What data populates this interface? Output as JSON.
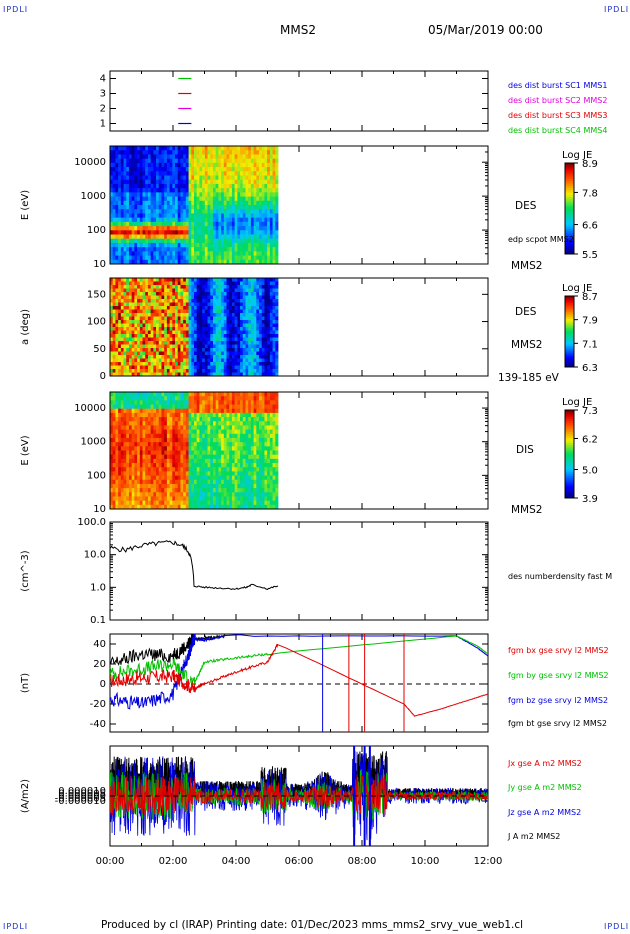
{
  "corner_labels": {
    "tl": "IPDLI",
    "tr": "IPDLI",
    "bl": "IPDLI",
    "br": "IPDLI"
  },
  "header": {
    "spacecraft": "MMS2",
    "date": "05/Mar/2019 00:00"
  },
  "footer": {
    "text": "Produced by cl (IRAP)    Printing date: 01/Dec/2023    mms_mms2_srvy_vue_web1.cl"
  },
  "colors": {
    "red": "#e00000",
    "green": "#00c000",
    "blue": "#0000e0",
    "magenta": "#e000e0",
    "black": "#000000"
  },
  "chart_data": [
    {
      "type": "line",
      "panel": "availability",
      "yticks": [
        "1",
        "2",
        "3",
        "4"
      ],
      "ylim": [
        0.5,
        4.5
      ],
      "legend": [
        {
          "text": "des dist burst SC1 MMS1",
          "color": "#0000e0"
        },
        {
          "text": "des dist burst SC2 MMS2",
          "color": "#e000e0"
        },
        {
          "text": "des dist burst SC3 MMS3",
          "color": "#e00000"
        },
        {
          "text": "des dist burst SC4 MMS4",
          "color": "#00c000"
        }
      ],
      "series": [
        {
          "color": "#00c000",
          "y": 4,
          "x": [
            "02:10",
            "02:35"
          ]
        },
        {
          "color": "#e00000",
          "y": 3,
          "x": [
            "02:10",
            "02:35"
          ]
        },
        {
          "color": "#e000e0",
          "y": 2,
          "x": [
            "02:10",
            "02:35"
          ]
        },
        {
          "color": "#0000e0",
          "y": 1,
          "x": [
            "02:10",
            "02:35"
          ]
        }
      ]
    },
    {
      "type": "heatmap",
      "panel": "des-energy",
      "ylabel": "E (eV)",
      "yscale": "log",
      "ylim": [
        10,
        30000
      ],
      "yticks": [
        "10",
        "100",
        "1000",
        "10000"
      ],
      "right_labels": [
        "DES",
        "edp scpot MMS2",
        "MMS2"
      ],
      "colorbar": {
        "title": "Log JE",
        "ticks": [
          "8.9",
          "7.8",
          "6.6",
          "5.5"
        ],
        "range": [
          5.5,
          8.9
        ]
      },
      "data_end": "05:20"
    },
    {
      "type": "heatmap",
      "panel": "des-pitch",
      "ylabel": "a (deg)",
      "ylim": [
        0,
        180
      ],
      "yticks": [
        "0",
        "50",
        "100",
        "150"
      ],
      "right_labels": [
        "DES",
        "MMS2",
        "139-185 eV"
      ],
      "colorbar": {
        "title": "Log JE",
        "ticks": [
          "8.7",
          "7.9",
          "7.1",
          "6.3"
        ],
        "range": [
          6.3,
          8.7
        ]
      },
      "data_end": "05:20"
    },
    {
      "type": "heatmap",
      "panel": "dis-energy",
      "ylabel": "E (eV)",
      "yscale": "log",
      "ylim": [
        10,
        30000
      ],
      "yticks": [
        "10",
        "100",
        "1000",
        "10000"
      ],
      "right_labels": [
        "DIS",
        "MMS2"
      ],
      "colorbar": {
        "title": "Log JE",
        "ticks": [
          "7.3",
          "6.2",
          "5.0",
          "3.9"
        ],
        "range": [
          3.9,
          7.3
        ]
      },
      "data_end": "05:20"
    },
    {
      "type": "line",
      "panel": "density",
      "ylabel": "(cm^-3)",
      "yscale": "log",
      "ylim": [
        0.1,
        100
      ],
      "yticks": [
        "0.1",
        "1.0",
        "10.0",
        "100.0"
      ],
      "right_labels": [
        "des numberdensity fast M"
      ],
      "series": [
        {
          "color": "#000000",
          "x": [
            "00:00",
            "00:30",
            "01:00",
            "01:30",
            "02:00",
            "02:20",
            "02:30",
            "02:40",
            "03:00",
            "03:30",
            "04:00",
            "04:20",
            "04:30",
            "05:00",
            "05:20"
          ],
          "values": [
            16,
            14,
            19,
            22,
            24,
            18,
            12,
            1.1,
            1.0,
            0.95,
            0.9,
            1.0,
            1.2,
            0.9,
            1.1
          ]
        }
      ]
    },
    {
      "type": "line",
      "panel": "fgm",
      "ylabel": "(nT)",
      "ylim": [
        -48,
        50
      ],
      "yticks": [
        "-40",
        "-20",
        "0",
        "20",
        "40"
      ],
      "right_labels": [
        "fgm bx gse srvy l2 MMS2",
        "fgm by gse srvy l2 MMS2",
        "fgm bz gse srvy l2 MMS2",
        "fgm bt gse srvy l2 MMS2"
      ],
      "series": [
        {
          "color": "#e00000",
          "x": [
            "00:00",
            "01:00",
            "02:00",
            "02:40",
            "03:00",
            "04:00",
            "05:00",
            "05:20",
            "09:20",
            "09:40",
            "10:30",
            "11:30",
            "12:00"
          ],
          "values": [
            3,
            6,
            8,
            -5,
            0,
            12,
            22,
            40,
            -20,
            -32,
            -25,
            -15,
            -10
          ]
        },
        {
          "color": "#00c000",
          "x": [
            "00:00",
            "01:00",
            "02:00",
            "02:40",
            "03:00",
            "04:00",
            "05:00",
            "11:00",
            "11:40",
            "12:00"
          ],
          "values": [
            10,
            15,
            20,
            0,
            22,
            26,
            30,
            48,
            38,
            30
          ]
        },
        {
          "color": "#0000e0",
          "x": [
            "00:00",
            "01:00",
            "02:00",
            "02:30",
            "02:40",
            "03:00",
            "03:40",
            "11:00",
            "11:40",
            "12:00"
          ],
          "values": [
            -15,
            -20,
            -10,
            30,
            45,
            44,
            48,
            48,
            36,
            28
          ]
        },
        {
          "color": "#000000",
          "x": [
            "00:00",
            "01:00",
            "02:00",
            "02:30",
            "02:40",
            "03:00",
            "03:40"
          ],
          "values": [
            20,
            30,
            28,
            40,
            45,
            46,
            48
          ]
        }
      ]
    },
    {
      "type": "line",
      "panel": "current",
      "ylabel": "(A/m2)",
      "ylim": [
        -0.0001,
        0.0001
      ],
      "yticks": [
        "-0.000010",
        "-0.000005",
        "0.000000",
        "0.000005",
        "0.000010"
      ],
      "right_labels": [
        "Jx gse A m2 MMS2",
        "Jy gse A m2 MMS2",
        "Jz gse A m2 MMS2",
        "J A m2 MMS2"
      ]
    }
  ],
  "xaxis": {
    "ticks": [
      "00:00",
      "02:00",
      "04:00",
      "06:00",
      "08:00",
      "10:00",
      "12:00"
    ],
    "range_hours": [
      0,
      12
    ]
  }
}
